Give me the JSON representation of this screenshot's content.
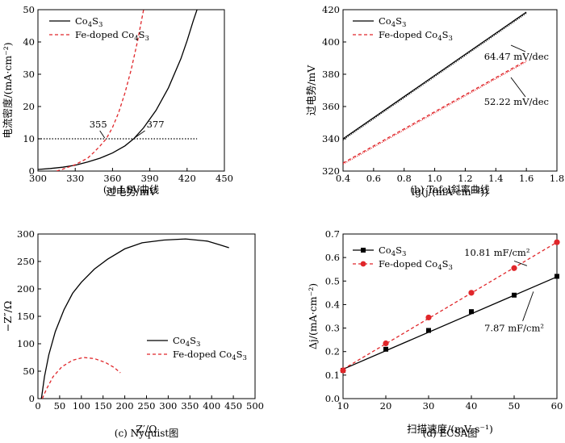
{
  "chart_data": [
    {
      "type": "line",
      "caption": "(a) LSV曲线",
      "xlabel": "过电势/mV",
      "ylabel": "电流密度/(mA·cm⁻²)",
      "xlim": [
        300,
        450
      ],
      "ylim": [
        0,
        50
      ],
      "xticks": [
        300,
        330,
        360,
        390,
        420,
        450
      ],
      "yticks": [
        0,
        10,
        20,
        30,
        40,
        50
      ],
      "legend": "top-left",
      "reference_line": {
        "y": 10,
        "x_range": [
          300,
          428
        ],
        "style": "dotted"
      },
      "annotations": [
        {
          "text": "355",
          "x": 355,
          "y": 10
        },
        {
          "text": "377",
          "x": 377,
          "y": 10
        }
      ],
      "series": [
        {
          "legend_main": "Co",
          "legend_sub1": "4",
          "legend_mid": "S",
          "legend_sub2": "3",
          "color": "#000000",
          "dash": "solid",
          "x": [
            300,
            310,
            320,
            330,
            340,
            350,
            360,
            370,
            377,
            385,
            395,
            405,
            415,
            420,
            425,
            428
          ],
          "y": [
            0.5,
            0.8,
            1.2,
            1.8,
            2.8,
            4.0,
            5.6,
            7.8,
            10,
            13.4,
            18.8,
            25.8,
            34.8,
            40.4,
            46.6,
            50
          ]
        },
        {
          "legend_main": "Fe-doped Co",
          "legend_sub1": "4",
          "legend_mid": "S",
          "legend_sub2": "3",
          "color": "#e0262a",
          "dash": "dash",
          "x": [
            315,
            320,
            330,
            340,
            345,
            350,
            355,
            360,
            365,
            370,
            375,
            380,
            385
          ],
          "y": [
            0,
            0.6,
            2.0,
            4.0,
            5.8,
            7.8,
            10,
            13.5,
            18.2,
            24.2,
            31.4,
            40.0,
            50
          ]
        }
      ]
    },
    {
      "type": "line",
      "caption": "(b) Tafel斜率曲线",
      "xlabel": "lg(j/(mA·cm⁻²))",
      "ylabel": "过电势/mV",
      "xlim": [
        0.4,
        1.8
      ],
      "ylim": [
        320,
        420
      ],
      "xticks": [
        0.4,
        0.6,
        0.8,
        1.0,
        1.2,
        1.4,
        1.6,
        1.8
      ],
      "yticks": [
        320,
        340,
        360,
        380,
        400,
        420
      ],
      "legend": "top-left",
      "annotations": [
        {
          "text": "64.47 mV/dec",
          "x": 1.48,
          "y": 400
        },
        {
          "text": "52.22 mV/dec",
          "x": 1.48,
          "y": 372
        }
      ],
      "series": [
        {
          "legend_main": "Co",
          "legend_sub1": "4",
          "legend_mid": "S",
          "legend_sub2": "3",
          "color": "#000000",
          "dash": "solid",
          "x": [
            0.4,
            1.6
          ],
          "y": [
            340,
            418.5
          ]
        },
        {
          "legend_main": "Fe-doped Co",
          "legend_sub1": "4",
          "legend_mid": "S",
          "legend_sub2": "3",
          "color": "#e0262a",
          "dash": "dash",
          "x": [
            0.4,
            1.6
          ],
          "y": [
            325,
            388.5
          ]
        }
      ]
    },
    {
      "type": "line",
      "caption": "(c) Nyquist图",
      "xlabel": "Z′/Ω",
      "ylabel": "−Z″/Ω",
      "xlim": [
        0,
        500
      ],
      "ylim": [
        0,
        300
      ],
      "xticks": [
        0,
        50,
        100,
        150,
        200,
        250,
        300,
        350,
        400,
        450,
        500
      ],
      "yticks": [
        0,
        50,
        100,
        150,
        200,
        250,
        300
      ],
      "legend": "center-right",
      "series": [
        {
          "legend_main": "Co",
          "legend_sub1": "4",
          "legend_mid": "S",
          "legend_sub2": "3",
          "color": "#000000",
          "dash": "solid",
          "x": [
            8,
            15,
            25,
            40,
            60,
            80,
            100,
            130,
            160,
            200,
            240,
            290,
            340,
            390,
            420,
            440
          ],
          "y": [
            0,
            40,
            80,
            122,
            162,
            192,
            212,
            236,
            254,
            273,
            284,
            289,
            291,
            287,
            280,
            275
          ]
        },
        {
          "legend_main": "Fe-doped Co",
          "legend_sub1": "4",
          "legend_mid": "S",
          "legend_sub2": "3",
          "color": "#e0262a",
          "dash": "dash",
          "x": [
            10,
            20,
            35,
            55,
            80,
            105,
            130,
            155,
            175,
            190
          ],
          "y": [
            0,
            18,
            40,
            58,
            70,
            75,
            73,
            66,
            57,
            47
          ]
        }
      ]
    },
    {
      "type": "scatter",
      "caption": "(d) ECSA图",
      "xlabel": "扫描速度/(mV·s⁻¹)",
      "ylabel": "Δj/(mA·cm⁻²)",
      "xlim": [
        10,
        60
      ],
      "ylim": [
        0,
        0.7
      ],
      "xticks": [
        10,
        20,
        30,
        40,
        50,
        60
      ],
      "yticks": [
        0,
        0.1,
        0.2,
        0.3,
        0.4,
        0.5,
        0.6,
        0.7
      ],
      "legend": "top-left",
      "annotations": [
        {
          "text": "10.81 mF/cm²",
          "x": 40,
          "y": 0.59
        },
        {
          "text": "7.87 mF/cm²",
          "x": 45,
          "y": 0.32
        }
      ],
      "series": [
        {
          "legend_main": "Co",
          "legend_sub1": "4",
          "legend_mid": "S",
          "legend_sub2": "3",
          "color": "#000000",
          "dash": "solid",
          "marker": "square",
          "x": [
            10,
            20,
            30,
            40,
            50,
            60
          ],
          "y": [
            0.12,
            0.21,
            0.29,
            0.37,
            0.44,
            0.52
          ],
          "fit": [
            [
              10,
              0.125
            ],
            [
              60,
              0.518
            ]
          ]
        },
        {
          "legend_main": "Fe-doped Co",
          "legend_sub1": "4",
          "legend_mid": "S",
          "legend_sub2": "3",
          "color": "#e0262a",
          "dash": "dash",
          "marker": "circle",
          "x": [
            10,
            20,
            30,
            40,
            50,
            60
          ],
          "y": [
            0.12,
            0.235,
            0.345,
            0.45,
            0.555,
            0.665
          ],
          "fit": [
            [
              10,
              0.125
            ],
            [
              60,
              0.665
            ]
          ]
        }
      ]
    }
  ]
}
